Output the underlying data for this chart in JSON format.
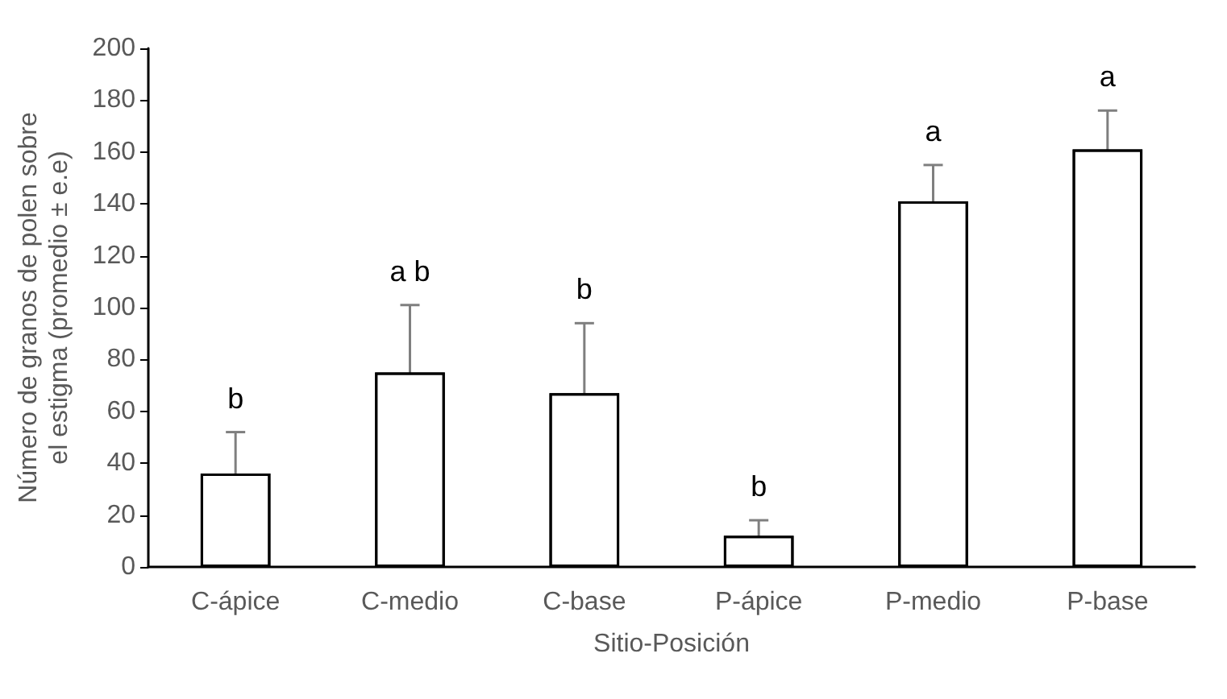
{
  "chart_data": {
    "type": "bar",
    "xlabel": "Sitio-Posición",
    "ylabel": "Número de granos de polen sobre el estigma (promedio ± e.e)",
    "categories": [
      "C-ápice",
      "C-medio",
      "C-base",
      "P-ápice",
      "P-medio",
      "P-base"
    ],
    "values": [
      36,
      75,
      67,
      12,
      141,
      161
    ],
    "errors": [
      16,
      26,
      27,
      6,
      14,
      15
    ],
    "color": "#ffffff",
    "ylim": [
      0,
      200
    ],
    "yticks": [
      0,
      20,
      40,
      60,
      80,
      100,
      120,
      140,
      160,
      180,
      200
    ],
    "grid": false,
    "annotations": [
      "b",
      "a b",
      "b",
      "b",
      "a",
      "a"
    ]
  }
}
